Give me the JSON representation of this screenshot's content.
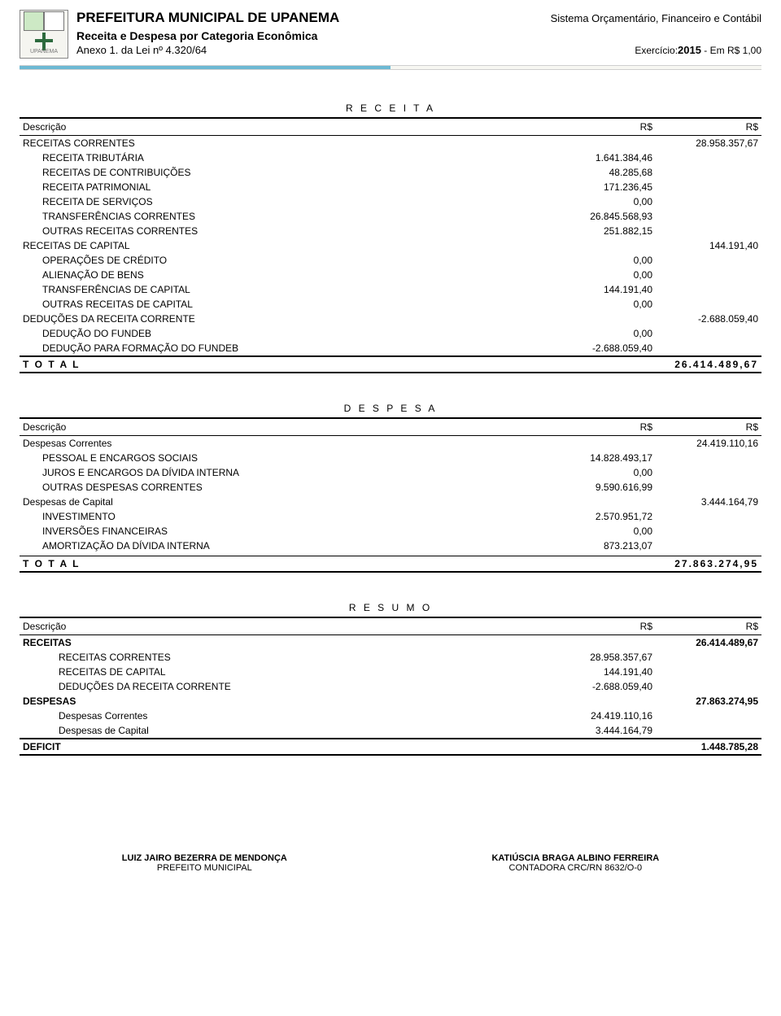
{
  "header": {
    "title": "PREFEITURA MUNICIPAL DE UPANEMA",
    "system": "Sistema Orçamentário, Financeiro e Contábil",
    "subtitle": "Receita e Despesa por Categoria Econômica",
    "anexo": "Anexo 1. da Lei nº 4.320/64",
    "exercicio_label": "Exercício:",
    "exercicio_year": "2015",
    "exercicio_suffix": " - Em R$ 1,00"
  },
  "labels": {
    "descricao": "Descrição",
    "rs": "R$",
    "total": "T O T A L",
    "receita": "R E C E I T A",
    "despesa": "D E S P E S A",
    "resumo": "R E S U M O"
  },
  "receita": {
    "rows": [
      {
        "label": "RECEITAS CORRENTES",
        "v1": "",
        "v2": "28.958.357,67",
        "indent": 0
      },
      {
        "label": "RECEITA TRIBUTÁRIA",
        "v1": "1.641.384,46",
        "v2": "",
        "indent": 1
      },
      {
        "label": "RECEITAS DE CONTRIBUIÇÕES",
        "v1": "48.285,68",
        "v2": "",
        "indent": 1
      },
      {
        "label": "RECEITA PATRIMONIAL",
        "v1": "171.236,45",
        "v2": "",
        "indent": 1
      },
      {
        "label": "RECEITA DE SERVIÇOS",
        "v1": "0,00",
        "v2": "",
        "indent": 1
      },
      {
        "label": "TRANSFERÊNCIAS CORRENTES",
        "v1": "26.845.568,93",
        "v2": "",
        "indent": 1
      },
      {
        "label": "OUTRAS RECEITAS CORRENTES",
        "v1": "251.882,15",
        "v2": "",
        "indent": 1
      },
      {
        "label": "RECEITAS DE CAPITAL",
        "v1": "",
        "v2": "144.191,40",
        "indent": 0
      },
      {
        "label": "OPERAÇÕES DE CRÉDITO",
        "v1": "0,00",
        "v2": "",
        "indent": 1
      },
      {
        "label": "ALIENAÇÃO DE BENS",
        "v1": "0,00",
        "v2": "",
        "indent": 1
      },
      {
        "label": "TRANSFERÊNCIAS DE CAPITAL",
        "v1": "144.191,40",
        "v2": "",
        "indent": 1
      },
      {
        "label": "OUTRAS RECEITAS DE CAPITAL",
        "v1": "0,00",
        "v2": "",
        "indent": 1
      },
      {
        "label": "DEDUÇÕES DA RECEITA CORRENTE",
        "v1": "",
        "v2": "-2.688.059,40",
        "indent": 0
      },
      {
        "label": "DEDUÇÃO DO FUNDEB",
        "v1": "0,00",
        "v2": "",
        "indent": 1
      },
      {
        "label": "DEDUÇÃO PARA FORMAÇÃO DO FUNDEB",
        "v1": "-2.688.059,40",
        "v2": "",
        "indent": 1
      }
    ],
    "total": "26.414.489,67"
  },
  "despesa": {
    "rows": [
      {
        "label": "Despesas Correntes",
        "v1": "",
        "v2": "24.419.110,16",
        "indent": 0
      },
      {
        "label": "PESSOAL E ENCARGOS SOCIAIS",
        "v1": "14.828.493,17",
        "v2": "",
        "indent": 1
      },
      {
        "label": "JUROS E ENCARGOS DA DÍVIDA INTERNA",
        "v1": "0,00",
        "v2": "",
        "indent": 1
      },
      {
        "label": "OUTRAS DESPESAS CORRENTES",
        "v1": "9.590.616,99",
        "v2": "",
        "indent": 1
      },
      {
        "label": "Despesas de Capital",
        "v1": "",
        "v2": "3.444.164,79",
        "indent": 0
      },
      {
        "label": "INVESTIMENTO",
        "v1": "2.570.951,72",
        "v2": "",
        "indent": 1
      },
      {
        "label": "INVERSÕES FINANCEIRAS",
        "v1": "0,00",
        "v2": "",
        "indent": 1
      },
      {
        "label": "AMORTIZAÇÃO DA DÍVIDA INTERNA",
        "v1": "873.213,07",
        "v2": "",
        "indent": 1
      }
    ],
    "total": "27.863.274,95"
  },
  "resumo": {
    "rows": [
      {
        "label": "RECEITAS",
        "v1": "",
        "v2": "26.414.489,67",
        "indent": 0,
        "bold": true
      },
      {
        "label": "RECEITAS CORRENTES",
        "v1": "28.958.357,67",
        "v2": "",
        "indent": 2
      },
      {
        "label": "RECEITAS DE CAPITAL",
        "v1": "144.191,40",
        "v2": "",
        "indent": 2
      },
      {
        "label": "DEDUÇÕES DA RECEITA CORRENTE",
        "v1": "-2.688.059,40",
        "v2": "",
        "indent": 2
      },
      {
        "label": "DESPESAS",
        "v1": "",
        "v2": "27.863.274,95",
        "indent": 0,
        "bold": true
      },
      {
        "label": "Despesas Correntes",
        "v1": "24.419.110,16",
        "v2": "",
        "indent": 2
      },
      {
        "label": "Despesas de Capital",
        "v1": "3.444.164,79",
        "v2": "",
        "indent": 2
      }
    ],
    "deficit_label": "DEFICIT",
    "deficit": "1.448.785,28"
  },
  "signatures": {
    "left_name": "LUIZ JAIRO BEZERRA DE MENDONÇA",
    "left_title": "PREFEITO MUNICIPAL",
    "right_name": "KATIÚSCIA BRAGA ALBINO FERREIRA",
    "right_title": "CONTADORA CRC/RN 8632/O-0"
  }
}
